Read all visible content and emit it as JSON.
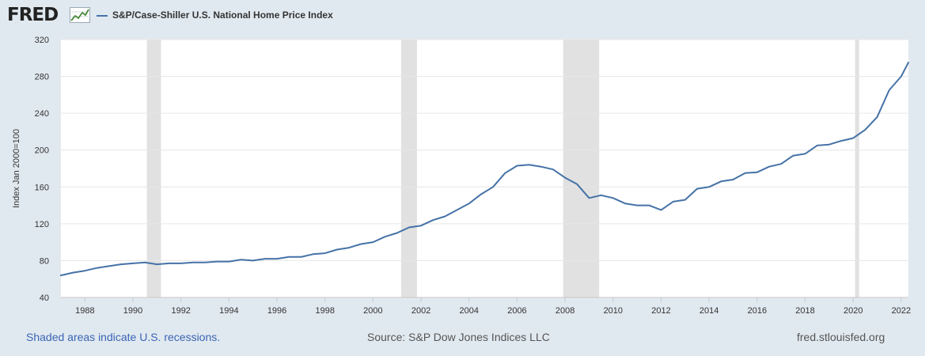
{
  "header": {
    "logo_text": "FRED",
    "series_title": "S&P/Case-Shiller U.S. National Home Price Index"
  },
  "chart_data": {
    "type": "line",
    "title": "S&P/Case-Shiller U.S. National Home Price Index",
    "xlabel": "",
    "ylabel": "Index Jan 2000=100",
    "xlim": [
      1987.0,
      2022.3
    ],
    "ylim": [
      40,
      320
    ],
    "yticks": [
      40,
      80,
      120,
      160,
      200,
      240,
      280,
      320
    ],
    "xticks": [
      1988,
      1990,
      1992,
      1994,
      1996,
      1998,
      2000,
      2002,
      2004,
      2006,
      2008,
      2010,
      2012,
      2014,
      2016,
      2018,
      2020,
      2022
    ],
    "grid": true,
    "line_color": "#4572a7",
    "recession_color": "#e1e1e1",
    "recessions": [
      [
        1990.58,
        1991.17
      ],
      [
        2001.17,
        2001.83
      ],
      [
        2007.92,
        2009.42
      ],
      [
        2020.08,
        2020.25
      ]
    ],
    "series": [
      {
        "name": "S&P/Case-Shiller U.S. National Home Price Index",
        "x": [
          1987.0,
          1987.5,
          1988.0,
          1988.5,
          1989.0,
          1989.5,
          1990.0,
          1990.5,
          1991.0,
          1991.5,
          1992.0,
          1992.5,
          1993.0,
          1993.5,
          1994.0,
          1994.5,
          1995.0,
          1995.5,
          1996.0,
          1996.5,
          1997.0,
          1997.5,
          1998.0,
          1998.5,
          1999.0,
          1999.5,
          2000.0,
          2000.5,
          2001.0,
          2001.5,
          2002.0,
          2002.5,
          2003.0,
          2003.5,
          2004.0,
          2004.5,
          2005.0,
          2005.5,
          2006.0,
          2006.5,
          2007.0,
          2007.5,
          2008.0,
          2008.5,
          2009.0,
          2009.5,
          2010.0,
          2010.5,
          2011.0,
          2011.5,
          2012.0,
          2012.5,
          2013.0,
          2013.5,
          2014.0,
          2014.5,
          2015.0,
          2015.5,
          2016.0,
          2016.5,
          2017.0,
          2017.5,
          2018.0,
          2018.5,
          2019.0,
          2019.5,
          2020.0,
          2020.5,
          2021.0,
          2021.5,
          2022.0,
          2022.3
        ],
        "values": [
          64,
          67,
          69,
          72,
          74,
          76,
          77,
          78,
          76,
          77,
          77,
          78,
          78,
          79,
          79,
          81,
          80,
          82,
          82,
          84,
          84,
          87,
          88,
          92,
          94,
          98,
          100,
          106,
          110,
          116,
          118,
          124,
          128,
          135,
          142,
          152,
          160,
          175,
          183,
          184,
          182,
          179,
          170,
          163,
          148,
          151,
          148,
          142,
          140,
          140,
          135,
          144,
          146,
          158,
          160,
          166,
          168,
          175,
          176,
          182,
          185,
          194,
          196,
          205,
          206,
          210,
          213,
          222,
          236,
          265,
          280,
          295
        ]
      }
    ]
  },
  "footer": {
    "recession_note": "Shaded areas indicate U.S. recessions.",
    "source": "Source: S&P Dow Jones Indices LLC",
    "site": "fred.stlouisfed.org"
  }
}
